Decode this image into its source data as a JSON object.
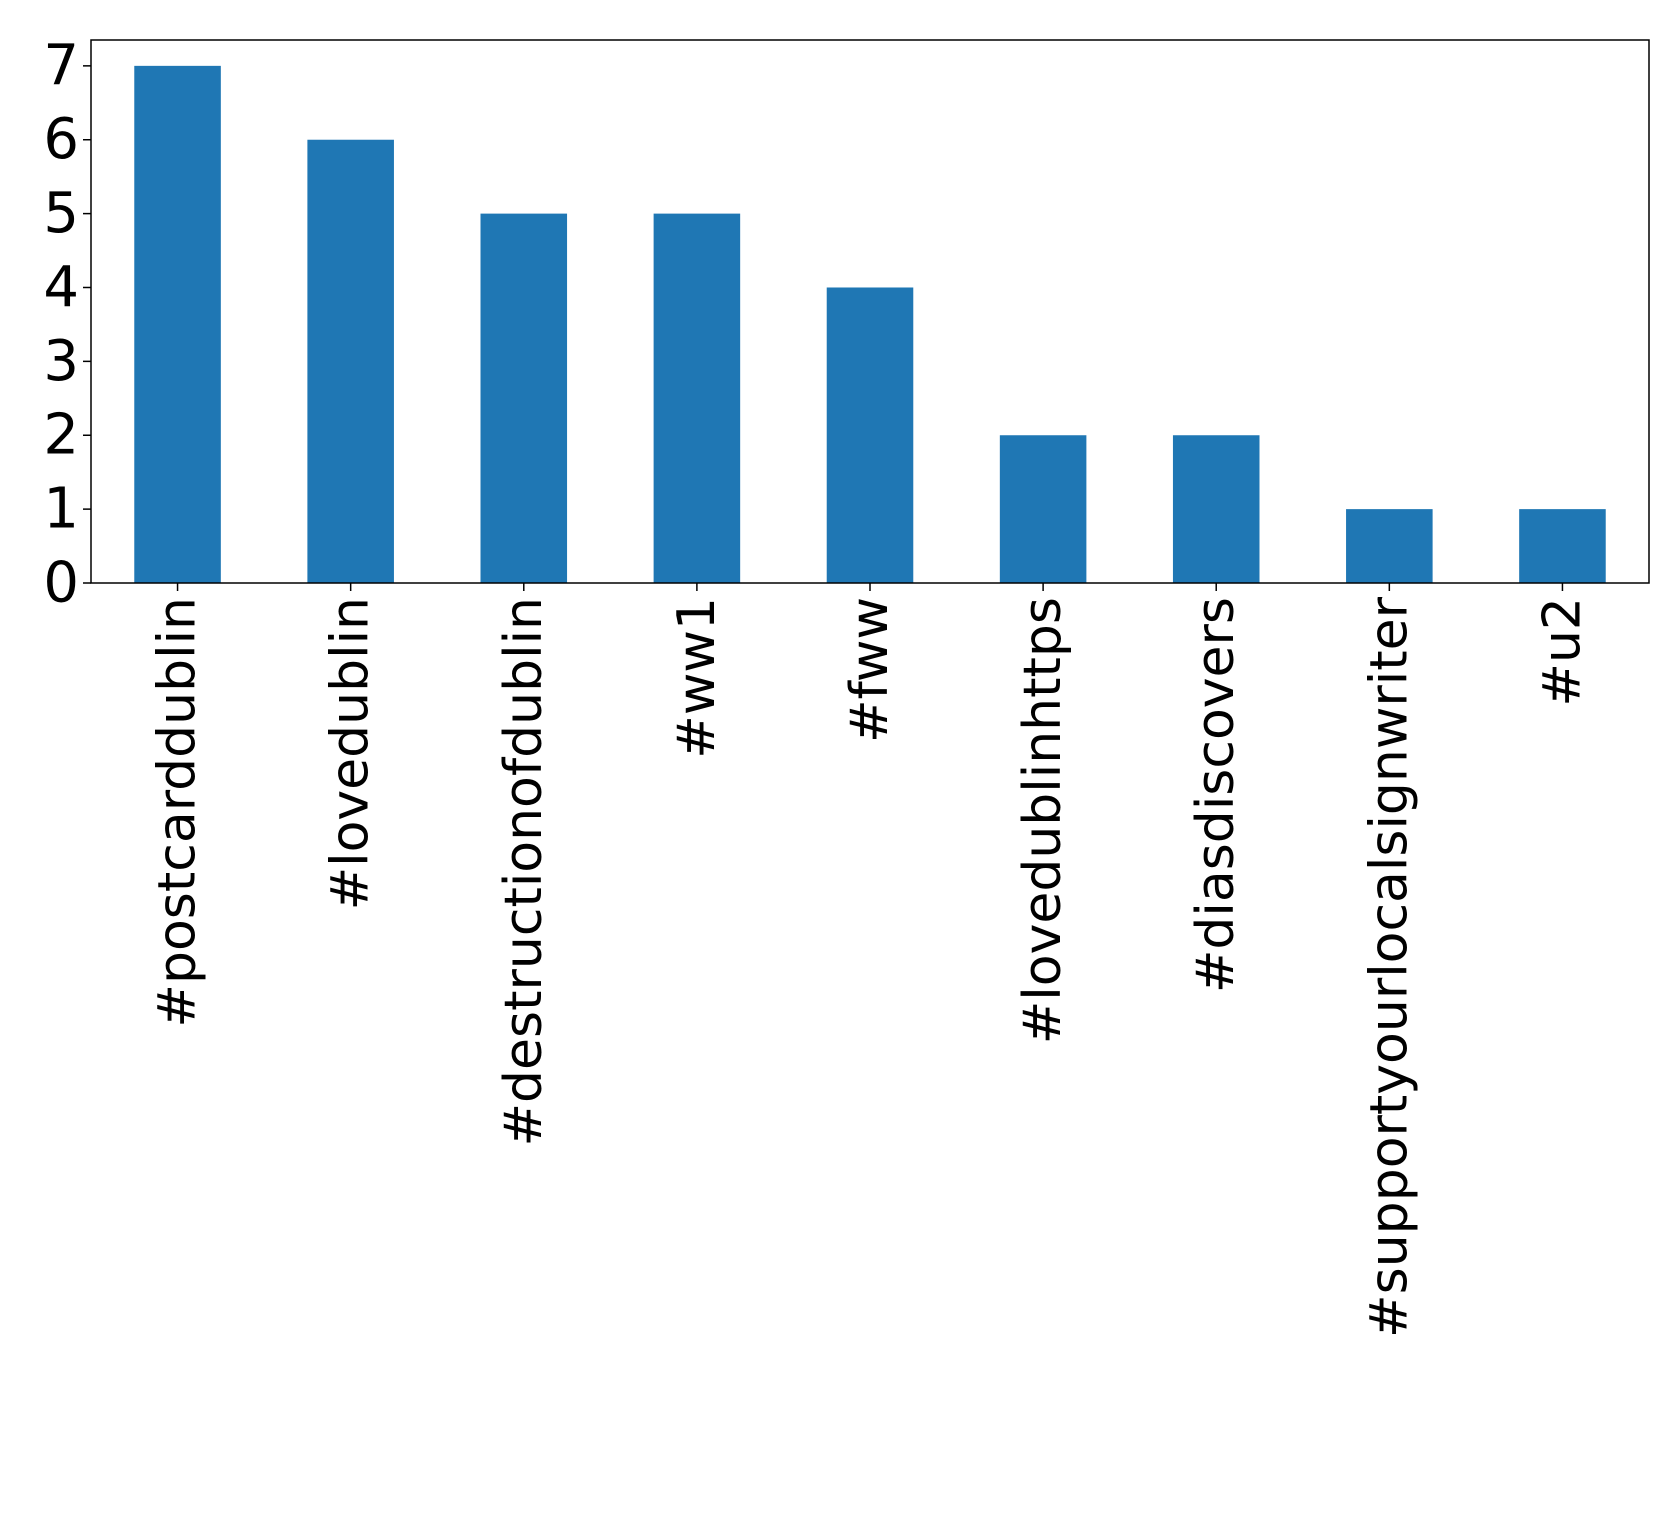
{
  "chart_data": {
    "type": "bar",
    "categories": [
      "#postcarddublin",
      "#lovedublin",
      "#destructionofdublin",
      "#ww1",
      "#fww",
      "#lovedublinhttps",
      "#diasdiscovers",
      "#supportyourlocalsignwriter",
      "#u2"
    ],
    "values": [
      7,
      6,
      5,
      5,
      4,
      2,
      2,
      1,
      1
    ],
    "title": "",
    "xlabel": "",
    "ylabel": "",
    "ylim": [
      0,
      7.35
    ],
    "yticks": [
      "0",
      "1",
      "2",
      "3",
      "4",
      "5",
      "6",
      "7"
    ],
    "grid": false,
    "legend": "none",
    "bar_color": "#1f77b4"
  }
}
